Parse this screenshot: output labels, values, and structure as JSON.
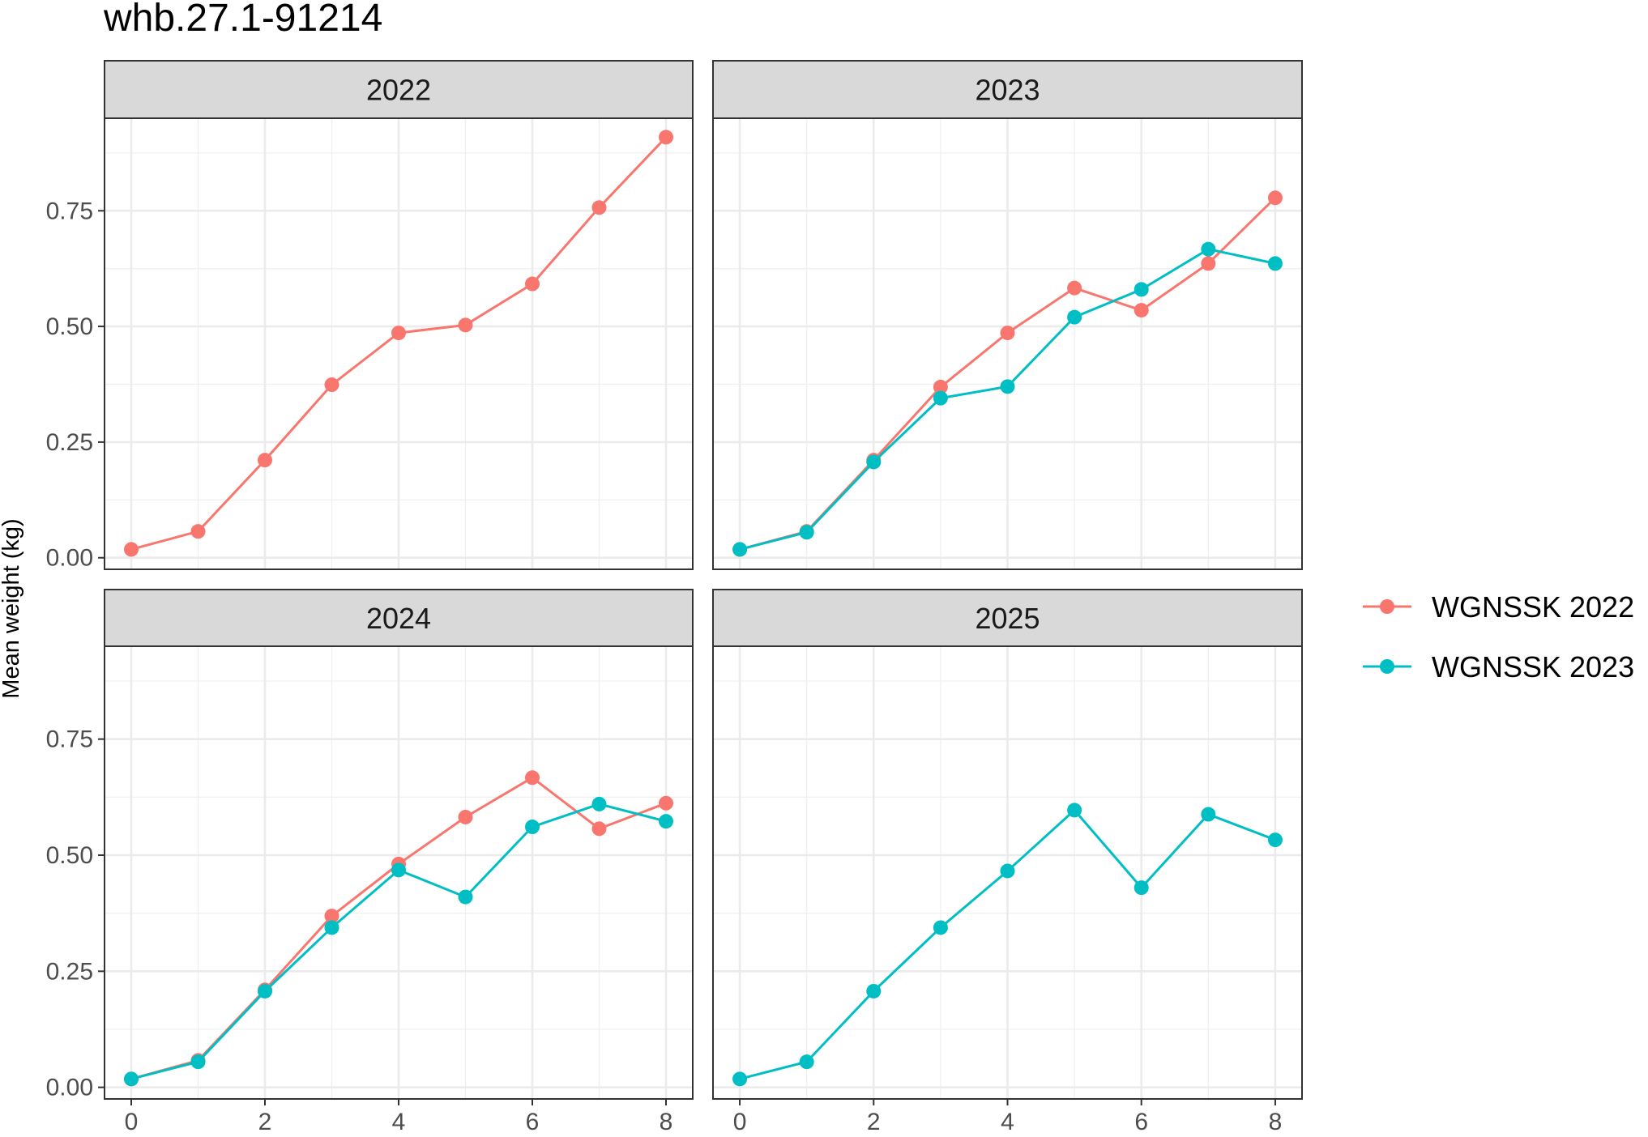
{
  "chart_data": {
    "type": "line",
    "title": "whb.27.1-91214",
    "xlabel": "",
    "ylabel": "Mean weight (kg)",
    "xlim": [
      -0.4,
      8.4
    ],
    "ylim": [
      -0.025,
      0.95
    ],
    "x_ticks": [
      "0",
      "2",
      "4",
      "6",
      "8"
    ],
    "y_ticks": [
      "0.00",
      "0.25",
      "0.50",
      "0.75"
    ],
    "x_tick_values": [
      0,
      2,
      4,
      6,
      8
    ],
    "y_tick_values": [
      0,
      0.25,
      0.5,
      0.75
    ],
    "grid": true,
    "legend_position": "right",
    "legend": [
      {
        "name": "WGNSSK 2022",
        "color": "#F8766D"
      },
      {
        "name": "WGNSSK 2023",
        "color": "#00BFC4"
      }
    ],
    "panels": [
      {
        "label": "2022",
        "series": [
          {
            "name": "WGNSSK 2022",
            "color": "#F8766D",
            "x": [
              0,
              1,
              2,
              3,
              4,
              5,
              6,
              7,
              8
            ],
            "values": [
              0.018,
              0.057,
              0.211,
              0.374,
              0.486,
              0.503,
              0.592,
              0.757,
              0.909
            ]
          }
        ]
      },
      {
        "label": "2023",
        "series": [
          {
            "name": "WGNSSK 2022",
            "color": "#F8766D",
            "x": [
              0,
              1,
              2,
              3,
              4,
              5,
              6,
              7,
              8
            ],
            "values": [
              0.018,
              0.057,
              0.211,
              0.369,
              0.486,
              0.583,
              0.535,
              0.636,
              0.778
            ]
          },
          {
            "name": "WGNSSK 2023",
            "color": "#00BFC4",
            "x": [
              0,
              1,
              2,
              3,
              4,
              5,
              6,
              7,
              8
            ],
            "values": [
              0.018,
              0.055,
              0.207,
              0.345,
              0.37,
              0.52,
              0.58,
              0.667,
              0.636
            ]
          }
        ]
      },
      {
        "label": "2024",
        "series": [
          {
            "name": "WGNSSK 2022",
            "color": "#F8766D",
            "x": [
              0,
              1,
              2,
              3,
              4,
              5,
              6,
              7,
              8
            ],
            "values": [
              0.018,
              0.058,
              0.21,
              0.369,
              0.481,
              0.582,
              0.667,
              0.557,
              0.612
            ]
          },
          {
            "name": "WGNSSK 2023",
            "color": "#00BFC4",
            "x": [
              0,
              1,
              2,
              3,
              4,
              5,
              6,
              7,
              8
            ],
            "values": [
              0.018,
              0.055,
              0.207,
              0.344,
              0.468,
              0.41,
              0.561,
              0.61,
              0.573
            ]
          }
        ]
      },
      {
        "label": "2025",
        "series": [
          {
            "name": "WGNSSK 2023",
            "color": "#00BFC4",
            "x": [
              0,
              1,
              2,
              3,
              4,
              5,
              6,
              7,
              8
            ],
            "values": [
              0.018,
              0.055,
              0.207,
              0.344,
              0.466,
              0.597,
              0.43,
              0.588,
              0.533
            ]
          }
        ]
      }
    ]
  }
}
